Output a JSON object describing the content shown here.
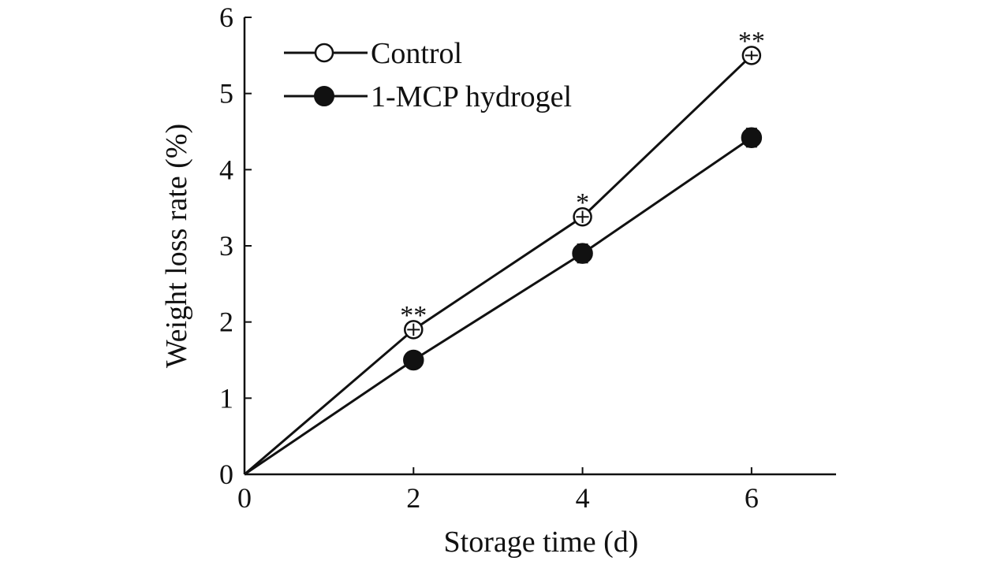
{
  "chart_data": {
    "type": "line",
    "title": "",
    "xlabel": "Storage time (d)",
    "ylabel": "Weight loss rate (%)",
    "xlim": [
      0,
      7
    ],
    "ylim": [
      0,
      6
    ],
    "x_ticks": [
      0,
      2,
      4,
      6
    ],
    "y_ticks": [
      0,
      1,
      2,
      3,
      4,
      5,
      6
    ],
    "grid": false,
    "legend_position": "top-left",
    "x": [
      0,
      2,
      4,
      6
    ],
    "series": [
      {
        "name": "Control",
        "marker": "open-circle",
        "values": [
          0,
          1.9,
          3.38,
          5.5
        ],
        "errors": [
          0,
          0.08,
          0.08,
          0.06
        ]
      },
      {
        "name": "1-MCP hydrogel",
        "marker": "filled-circle",
        "values": [
          0,
          1.5,
          2.9,
          4.42
        ],
        "errors": [
          0,
          0.06,
          0.12,
          0.12
        ]
      }
    ],
    "annotations": [
      {
        "x": 2,
        "y": 2.12,
        "text": "**"
      },
      {
        "x": 4,
        "y": 3.6,
        "text": "*"
      },
      {
        "x": 6,
        "y": 5.72,
        "text": "**"
      }
    ],
    "colors": {
      "line": "#111111",
      "open_fill": "#ffffff",
      "filled": "#111111"
    }
  }
}
